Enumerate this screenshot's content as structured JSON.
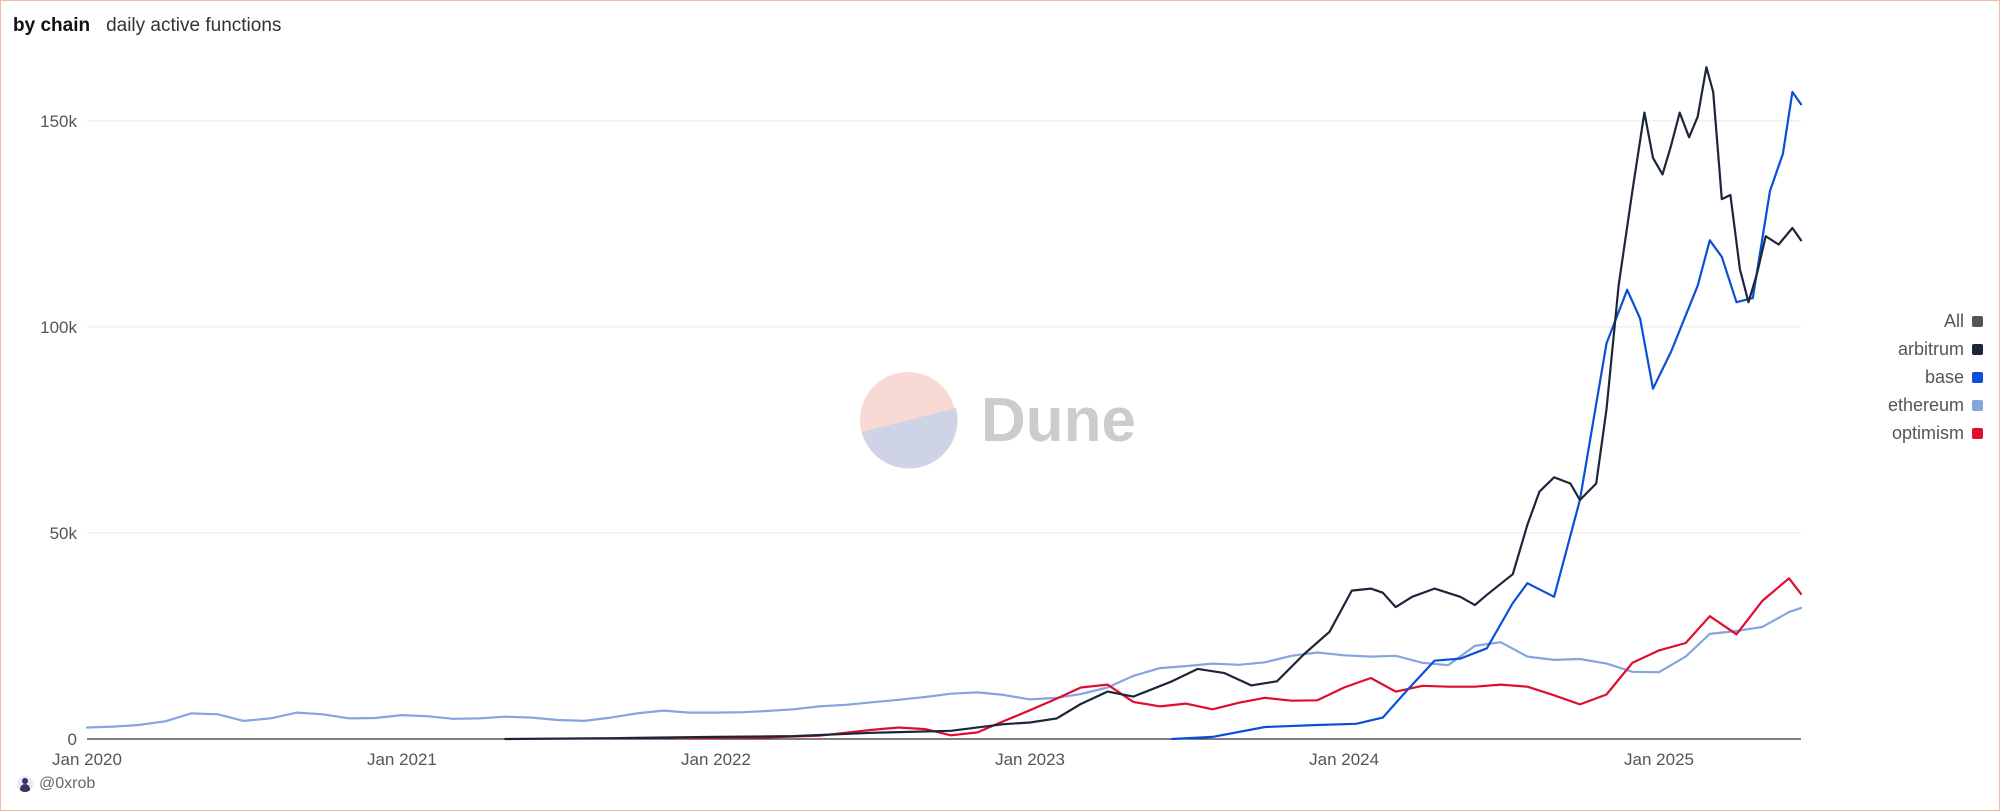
{
  "header": {
    "tab_title": "by chain",
    "tab_subtitle": "daily active functions"
  },
  "watermark": {
    "text": "Dune"
  },
  "footer": {
    "author": "@0xrob"
  },
  "legend": [
    {
      "label": "All",
      "color": "#555555"
    },
    {
      "label": "arbitrum",
      "color": "#1c2639"
    },
    {
      "label": "base",
      "color": "#0b4fd8"
    },
    {
      "label": "ethereum",
      "color": "#86a4e0"
    },
    {
      "label": "optimism",
      "color": "#e00d2e"
    }
  ],
  "chart_data": {
    "type": "line",
    "title": "",
    "xlabel": "",
    "ylabel": "",
    "x_range": [
      "2020-01-01",
      "2025-06-15"
    ],
    "ylim": [
      0,
      160000
    ],
    "y_ticks": [
      0,
      50000,
      100000,
      150000
    ],
    "y_tick_labels": [
      "0",
      "50k",
      "100k",
      "150k"
    ],
    "x_ticks": [
      "2020-01-01",
      "2021-01-01",
      "2022-01-01",
      "2023-01-01",
      "2024-01-01",
      "2025-01-01"
    ],
    "x_tick_labels": [
      "Jan 2020",
      "Jan 2021",
      "Jan 2022",
      "Jan 2023",
      "Jan 2024",
      "Jan 2025"
    ],
    "grid": true,
    "legend_position": "right",
    "series": [
      {
        "name": "ethereum",
        "color": "#86a4e0",
        "points": [
          [
            "2020-01-01",
            2800
          ],
          [
            "2020-02-01",
            3000
          ],
          [
            "2020-03-01",
            3400
          ],
          [
            "2020-04-01",
            4300
          ],
          [
            "2020-05-01",
            6200
          ],
          [
            "2020-06-01",
            6000
          ],
          [
            "2020-07-01",
            4400
          ],
          [
            "2020-08-01",
            5000
          ],
          [
            "2020-09-01",
            6400
          ],
          [
            "2020-10-01",
            6000
          ],
          [
            "2020-11-01",
            5000
          ],
          [
            "2020-12-01",
            5100
          ],
          [
            "2021-01-01",
            5800
          ],
          [
            "2021-02-01",
            5500
          ],
          [
            "2021-03-01",
            4900
          ],
          [
            "2021-04-01",
            5000
          ],
          [
            "2021-05-01",
            5400
          ],
          [
            "2021-06-01",
            5200
          ],
          [
            "2021-07-01",
            4600
          ],
          [
            "2021-08-01",
            4400
          ],
          [
            "2021-09-01",
            5200
          ],
          [
            "2021-10-01",
            6200
          ],
          [
            "2021-11-01",
            6900
          ],
          [
            "2021-12-01",
            6400
          ],
          [
            "2022-01-01",
            6400
          ],
          [
            "2022-02-01",
            6500
          ],
          [
            "2022-03-01",
            6800
          ],
          [
            "2022-04-01",
            7200
          ],
          [
            "2022-05-01",
            7900
          ],
          [
            "2022-06-01",
            8300
          ],
          [
            "2022-07-01",
            8900
          ],
          [
            "2022-08-01",
            9500
          ],
          [
            "2022-09-01",
            10200
          ],
          [
            "2022-10-01",
            11000
          ],
          [
            "2022-11-01",
            11300
          ],
          [
            "2022-12-01",
            10700
          ],
          [
            "2023-01-01",
            9600
          ],
          [
            "2023-02-01",
            10000
          ],
          [
            "2023-03-01",
            10900
          ],
          [
            "2023-04-01",
            12500
          ],
          [
            "2023-05-01",
            15300
          ],
          [
            "2023-06-01",
            17200
          ],
          [
            "2023-07-01",
            17700
          ],
          [
            "2023-08-01",
            18300
          ],
          [
            "2023-09-01",
            18000
          ],
          [
            "2023-10-01",
            18600
          ],
          [
            "2023-11-01",
            20200
          ],
          [
            "2023-12-01",
            21000
          ],
          [
            "2024-01-01",
            20300
          ],
          [
            "2024-02-01",
            20000
          ],
          [
            "2024-03-01",
            20200
          ],
          [
            "2024-04-01",
            18500
          ],
          [
            "2024-05-01",
            17900
          ],
          [
            "2024-06-01",
            22600
          ],
          [
            "2024-07-01",
            23500
          ],
          [
            "2024-08-01",
            20000
          ],
          [
            "2024-09-01",
            19200
          ],
          [
            "2024-10-01",
            19400
          ],
          [
            "2024-11-01",
            18300
          ],
          [
            "2024-12-01",
            16300
          ],
          [
            "2025-01-01",
            16200
          ],
          [
            "2025-02-01",
            20000
          ],
          [
            "2025-03-01",
            25500
          ],
          [
            "2025-04-01",
            26200
          ],
          [
            "2025-05-01",
            27200
          ],
          [
            "2025-06-01",
            30800
          ],
          [
            "2025-06-15",
            31800
          ]
        ]
      },
      {
        "name": "optimism",
        "color": "#e00d2e",
        "points": [
          [
            "2021-11-15",
            200
          ],
          [
            "2022-01-01",
            300
          ],
          [
            "2022-03-01",
            400
          ],
          [
            "2022-05-01",
            800
          ],
          [
            "2022-07-01",
            2200
          ],
          [
            "2022-08-01",
            2800
          ],
          [
            "2022-09-01",
            2400
          ],
          [
            "2022-10-01",
            900
          ],
          [
            "2022-11-01",
            1600
          ],
          [
            "2022-12-01",
            4300
          ],
          [
            "2023-01-01",
            7000
          ],
          [
            "2023-02-01",
            9800
          ],
          [
            "2023-03-01",
            12500
          ],
          [
            "2023-04-01",
            13200
          ],
          [
            "2023-05-01",
            9000
          ],
          [
            "2023-06-01",
            7900
          ],
          [
            "2023-07-01",
            8600
          ],
          [
            "2023-08-01",
            7200
          ],
          [
            "2023-09-01",
            8800
          ],
          [
            "2023-10-01",
            10000
          ],
          [
            "2023-11-01",
            9300
          ],
          [
            "2023-12-01",
            9400
          ],
          [
            "2024-01-01",
            12500
          ],
          [
            "2024-02-01",
            14800
          ],
          [
            "2024-03-01",
            11500
          ],
          [
            "2024-04-01",
            12900
          ],
          [
            "2024-05-01",
            12700
          ],
          [
            "2024-06-01",
            12700
          ],
          [
            "2024-07-01",
            13200
          ],
          [
            "2024-08-01",
            12700
          ],
          [
            "2024-09-01",
            10600
          ],
          [
            "2024-10-01",
            8400
          ],
          [
            "2024-11-01",
            10800
          ],
          [
            "2024-12-01",
            18500
          ],
          [
            "2025-01-01",
            21500
          ],
          [
            "2025-02-01",
            23300
          ],
          [
            "2025-03-01",
            29800
          ],
          [
            "2025-04-01",
            25400
          ],
          [
            "2025-05-01",
            33500
          ],
          [
            "2025-06-01",
            39000
          ],
          [
            "2025-06-15",
            35200
          ]
        ]
      },
      {
        "name": "base",
        "color": "#0b4fd8",
        "points": [
          [
            "2023-06-15",
            0
          ],
          [
            "2023-08-01",
            500
          ],
          [
            "2023-10-01",
            2900
          ],
          [
            "2023-12-01",
            3400
          ],
          [
            "2024-01-15",
            3700
          ],
          [
            "2024-02-15",
            5200
          ],
          [
            "2024-03-15",
            12000
          ],
          [
            "2024-04-15",
            19000
          ],
          [
            "2024-05-15",
            19500
          ],
          [
            "2024-06-15",
            22000
          ],
          [
            "2024-07-15",
            33000
          ],
          [
            "2024-08-01",
            37800
          ],
          [
            "2024-09-01",
            34500
          ],
          [
            "2024-10-01",
            58000
          ],
          [
            "2024-11-01",
            96000
          ],
          [
            "2024-11-25",
            109000
          ],
          [
            "2024-12-10",
            102000
          ],
          [
            "2024-12-25",
            85000
          ],
          [
            "2025-01-15",
            94000
          ],
          [
            "2025-02-15",
            110000
          ],
          [
            "2025-03-01",
            121000
          ],
          [
            "2025-03-15",
            117000
          ],
          [
            "2025-04-01",
            106000
          ],
          [
            "2025-04-20",
            107000
          ],
          [
            "2025-05-10",
            133000
          ],
          [
            "2025-05-25",
            142000
          ],
          [
            "2025-06-05",
            157000
          ],
          [
            "2025-06-15",
            154000
          ]
        ]
      },
      {
        "name": "arbitrum",
        "color": "#1c2639",
        "points": [
          [
            "2021-05-01",
            0
          ],
          [
            "2021-09-01",
            200
          ],
          [
            "2022-01-01",
            500
          ],
          [
            "2022-04-01",
            700
          ],
          [
            "2022-07-01",
            1500
          ],
          [
            "2022-10-01",
            2000
          ],
          [
            "2022-12-01",
            3600
          ],
          [
            "2023-01-01",
            4000
          ],
          [
            "2023-02-01",
            5000
          ],
          [
            "2023-03-01",
            8500
          ],
          [
            "2023-04-01",
            11500
          ],
          [
            "2023-05-01",
            10300
          ],
          [
            "2023-06-15",
            14000
          ],
          [
            "2023-07-15",
            17000
          ],
          [
            "2023-08-15",
            16000
          ],
          [
            "2023-09-15",
            13000
          ],
          [
            "2023-10-15",
            14000
          ],
          [
            "2023-11-15",
            20500
          ],
          [
            "2023-12-15",
            26000
          ],
          [
            "2024-01-10",
            36000
          ],
          [
            "2024-02-01",
            36500
          ],
          [
            "2024-02-15",
            35500
          ],
          [
            "2024-03-01",
            32000
          ],
          [
            "2024-03-20",
            34500
          ],
          [
            "2024-04-15",
            36500
          ],
          [
            "2024-05-15",
            34500
          ],
          [
            "2024-06-01",
            32500
          ],
          [
            "2024-06-15",
            35000
          ],
          [
            "2024-07-15",
            40000
          ],
          [
            "2024-08-01",
            52000
          ],
          [
            "2024-08-15",
            60000
          ],
          [
            "2024-09-01",
            63500
          ],
          [
            "2024-09-20",
            62000
          ],
          [
            "2024-10-01",
            58000
          ],
          [
            "2024-10-20",
            62000
          ],
          [
            "2024-11-01",
            80000
          ],
          [
            "2024-11-15",
            110000
          ],
          [
            "2024-12-01",
            133000
          ],
          [
            "2024-12-15",
            152000
          ],
          [
            "2024-12-25",
            141000
          ],
          [
            "2025-01-05",
            137000
          ],
          [
            "2025-01-15",
            144000
          ],
          [
            "2025-01-25",
            152000
          ],
          [
            "2025-02-05",
            146000
          ],
          [
            "2025-02-15",
            151000
          ],
          [
            "2025-02-25",
            163000
          ],
          [
            "2025-03-05",
            157000
          ],
          [
            "2025-03-15",
            131000
          ],
          [
            "2025-03-25",
            132000
          ],
          [
            "2025-04-05",
            114000
          ],
          [
            "2025-04-15",
            106000
          ],
          [
            "2025-04-25",
            113000
          ],
          [
            "2025-05-05",
            122000
          ],
          [
            "2025-05-20",
            120000
          ],
          [
            "2025-06-05",
            124000
          ],
          [
            "2025-06-15",
            121000
          ]
        ]
      }
    ]
  }
}
